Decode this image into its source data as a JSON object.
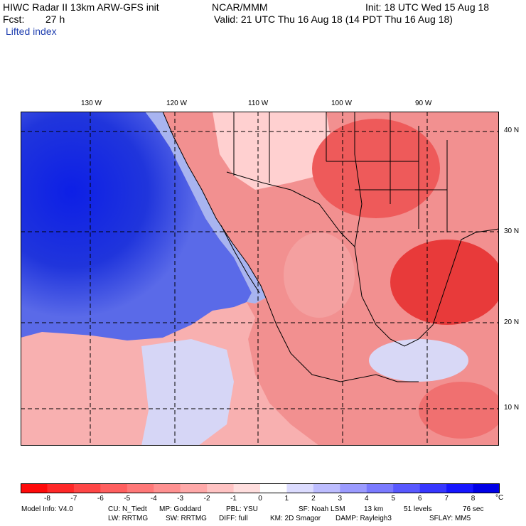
{
  "header": {
    "model_title": "HIWC Radar II 13km ARW-GFS init",
    "org": "NCAR/MMM",
    "init": "Init: 18 UTC Wed 15 Aug 18",
    "fcst_label": "Fcst:",
    "fcst_value": "27 h",
    "valid": "Valid: 21 UTC Thu 16 Aug 18 (14 PDT Thu 16 Aug 18)",
    "field": "Lifted index"
  },
  "map": {
    "lon_labels": [
      "130 W",
      "120 W",
      "110 W",
      "100 W",
      "90 W"
    ],
    "lat_labels": [
      "40 N",
      "30 N",
      "20 N",
      "10 N"
    ],
    "ocean_color": "#1a2fe0",
    "land_color": "#f08080"
  },
  "colorbar": {
    "labels": [
      "-8",
      "-7",
      "-6",
      "-5",
      "-4",
      "-3",
      "-2",
      "-1",
      "0",
      "1",
      "2",
      "3",
      "4",
      "5",
      "6",
      "7",
      "8"
    ],
    "unit": "°C",
    "colors": [
      "#ff0a0a",
      "#ff2828",
      "#ff4646",
      "#ff5f5f",
      "#ff7878",
      "#ff9191",
      "#ffa9a9",
      "#ffc3c3",
      "#ffdede",
      "#ffffff",
      "#dcdcff",
      "#bdbdff",
      "#9b9bff",
      "#7a7aff",
      "#5858ff",
      "#3737ff",
      "#1616ff",
      "#0000e6"
    ]
  },
  "footer": {
    "model_info": "Model Info: V4.0",
    "cu": "CU: N_Tiedt",
    "mp": "MP: Goddard",
    "pbl": "PBL: YSU",
    "sf": "SF: Noah LSM",
    "res": "13 km",
    "levels": "51 levels",
    "dt": "76 sec",
    "lw": "LW: RRTMG",
    "sw": "SW: RRTMG",
    "diff": "DIFF: full",
    "km": "KM: 2D Smagor",
    "damp": "DAMP: Rayleigh3",
    "sflay": "SFLAY: MM5"
  }
}
